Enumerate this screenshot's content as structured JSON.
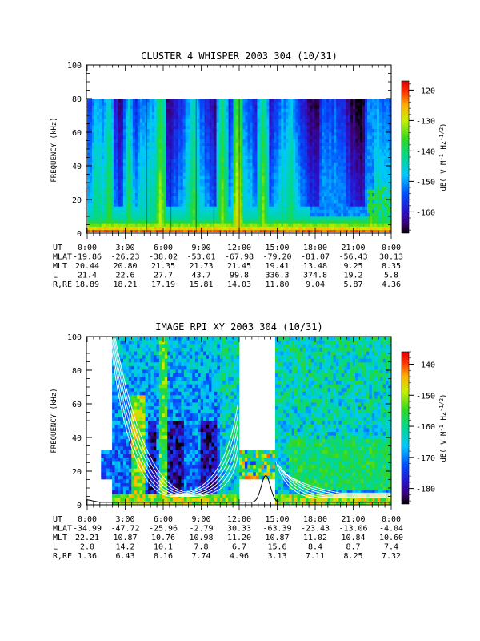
{
  "chart_data": [
    {
      "type": "heatmap",
      "title": "CLUSTER 4 WHISPER 2003 304 (10/31)",
      "ylabel": "FREQUENCY (kHz)",
      "ylim": [
        0,
        100
      ],
      "yticks": [
        "0",
        "20",
        "40",
        "60",
        "80",
        "100"
      ],
      "data_range_khz": [
        0,
        80
      ],
      "colorbar": {
        "label": "dB( V M⁻¹ Hz⁻¹ᐟ²)",
        "label_parts": [
          "dB( V M",
          "-1",
          " Hz",
          "-1/2",
          ")"
        ],
        "range": [
          -167,
          -117
        ],
        "ticks": [
          "-120",
          "-130",
          "-140",
          "-150",
          "-160"
        ]
      },
      "ephemeris": [
        {
          "label": "UT",
          "values": [
            "0:00",
            "3:00",
            "6:00",
            "9:00",
            "12:00",
            "15:00",
            "18:00",
            "21:00",
            "0:00"
          ]
        },
        {
          "label": "MLAT",
          "values": [
            "-19.86",
            "-26.23",
            "-38.02",
            "-53.01",
            "-67.98",
            "-79.20",
            "-81.07",
            "-56.43",
            "30.13"
          ]
        },
        {
          "label": "MLT",
          "values": [
            "20.44",
            "20.80",
            "21.35",
            "21.73",
            "21.45",
            "19.41",
            "13.48",
            "9.25",
            "8.35"
          ]
        },
        {
          "label": "L",
          "values": [
            "21.4",
            "22.6",
            "27.7",
            "43.7",
            "99.8",
            "336.3",
            "374.8",
            "19.2",
            "5.8"
          ]
        },
        {
          "label": "R,RE",
          "values": [
            "18.89",
            "18.21",
            "17.19",
            "15.81",
            "14.03",
            "11.80",
            "9.04",
            "5.87",
            "4.36"
          ]
        }
      ]
    },
    {
      "type": "heatmap",
      "title": "IMAGE RPI XY 2003 304 (10/31)",
      "ylabel": "FREQUENCY (kHz)",
      "ylim": [
        0,
        100
      ],
      "yticks": [
        "0",
        "20",
        "40",
        "60",
        "80",
        "100"
      ],
      "data_gap_ut_hours": [
        12.0,
        14.8
      ],
      "colorbar": {
        "label": "dB( V M⁻¹ Hz⁻¹ᐟ²)",
        "label_parts": [
          "dB( V M",
          "-1",
          " Hz",
          "-1/2",
          ")"
        ],
        "range": [
          -185,
          -136
        ],
        "ticks": [
          "-140",
          "-150",
          "-160",
          "-170",
          "-180"
        ]
      },
      "ephemeris": [
        {
          "label": "UT",
          "values": [
            "0:00",
            "3:00",
            "6:00",
            "9:00",
            "12:00",
            "15:00",
            "18:00",
            "21:00",
            "0:00"
          ]
        },
        {
          "label": "MLAT",
          "values": [
            "-34.99",
            "-47.72",
            "-25.96",
            "-2.79",
            "30.33",
            "-63.39",
            "-23.43",
            "-13.06",
            "-4.04"
          ]
        },
        {
          "label": "MLT",
          "values": [
            "22.21",
            "10.87",
            "10.76",
            "10.98",
            "11.20",
            "10.87",
            "11.02",
            "10.84",
            "10.60"
          ]
        },
        {
          "label": "L",
          "values": [
            "2.0",
            "14.2",
            "10.1",
            "7.8",
            "6.7",
            "15.6",
            "8.4",
            "8.7",
            "7.4"
          ]
        },
        {
          "label": "R,RE",
          "values": [
            "1.36",
            "6.43",
            "8.16",
            "7.74",
            "4.96",
            "3.13",
            "7.11",
            "8.25",
            "7.32"
          ]
        }
      ]
    }
  ]
}
